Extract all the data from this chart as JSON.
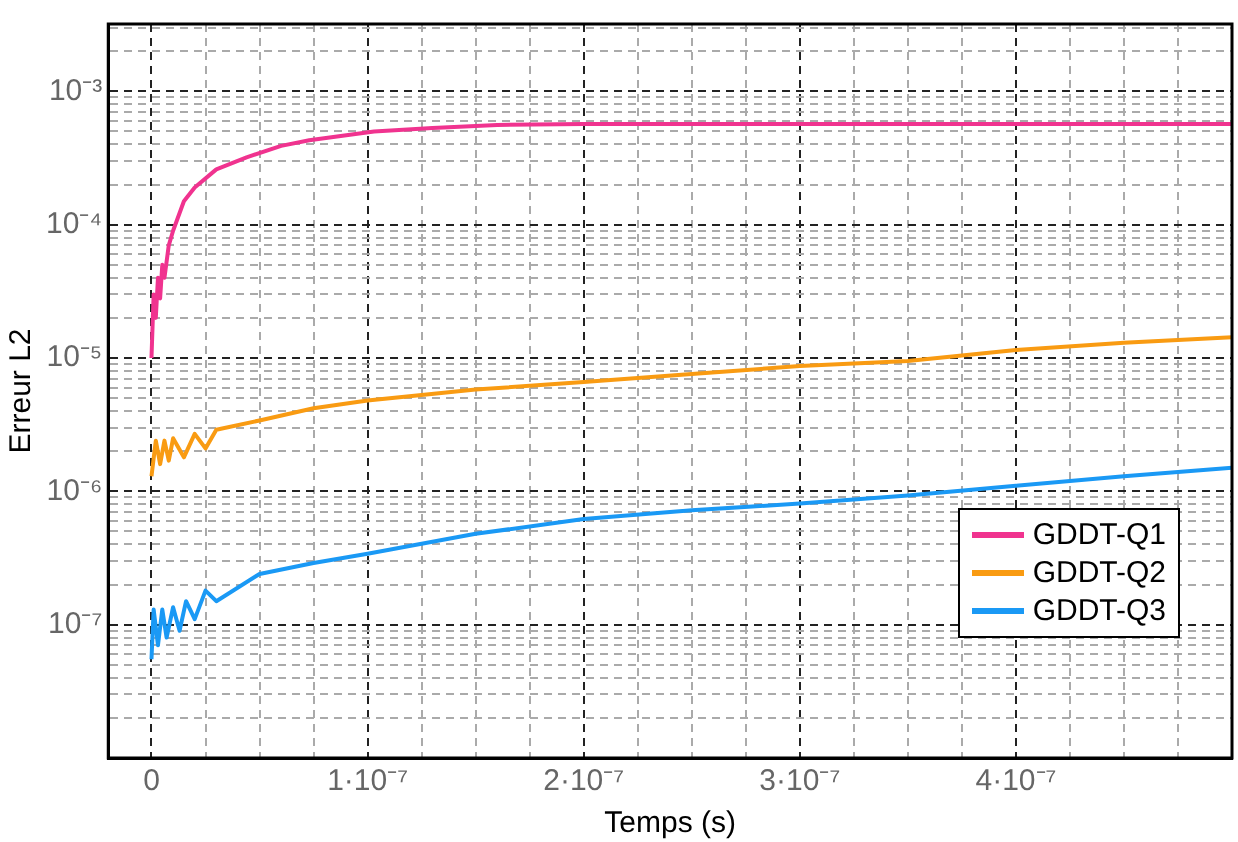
{
  "chart_data": {
    "type": "line",
    "xlabel": "Temps (s)",
    "ylabel": "Erreur L2",
    "log": "y",
    "grid": true,
    "legend": "bottom right",
    "line_style": "solid",
    "marker": "none",
    "xlim": [
      -2e-08,
      5e-07
    ],
    "xticks": [
      0,
      {
        "value": 2.5e-08,
        "label": null
      },
      {
        "value": 5e-08,
        "label": null
      },
      {
        "value": 7.5e-08,
        "label": null
      },
      {
        "value": 1e-07,
        "label": "1·10⁻⁷"
      },
      {
        "value": 1.25e-07,
        "label": null
      },
      {
        "value": 1.5e-07,
        "label": null
      },
      {
        "value": 1.75e-07,
        "label": null
      },
      {
        "value": 2e-07,
        "label": "2·10⁻⁷"
      },
      {
        "value": 2.25e-07,
        "label": null
      },
      {
        "value": 2.5e-07,
        "label": null
      },
      {
        "value": 2.75e-07,
        "label": null
      },
      {
        "value": 3e-07,
        "label": "3·10⁻⁷"
      },
      {
        "value": 3.25e-07,
        "label": null
      },
      {
        "value": 3.5e-07,
        "label": null
      },
      {
        "value": 3.75e-07,
        "label": null
      },
      {
        "value": 4e-07,
        "label": "4·10⁻⁷"
      },
      {
        "value": 4.25e-07,
        "label": null
      },
      {
        "value": 4.5e-07,
        "label": null
      },
      {
        "value": 4.75e-07,
        "label": null
      },
      {
        "value": 5e-07,
        "label": null
      }
    ],
    "ylim": [
      1e-08,
      0.0032
    ],
    "yticks": [
      {
        "value": 1e-08,
        "label": null
      },
      {
        "value": 2e-08,
        "label": null
      },
      {
        "value": 3e-08,
        "label": null
      },
      {
        "value": 4e-08,
        "label": null
      },
      {
        "value": 5e-08,
        "label": null
      },
      {
        "value": 6e-08,
        "label": null
      },
      {
        "value": 7e-08,
        "label": null
      },
      {
        "value": 8e-08,
        "label": null
      },
      {
        "value": 9e-08,
        "label": null
      },
      {
        "value": 1e-07,
        "label": "10⁻⁷"
      },
      {
        "value": 2e-07,
        "label": null
      },
      {
        "value": 3e-07,
        "label": null
      },
      {
        "value": 4e-07,
        "label": null
      },
      {
        "value": 5e-07,
        "label": null
      },
      {
        "value": 6e-07,
        "label": null
      },
      {
        "value": 7e-07,
        "label": null
      },
      {
        "value": 8e-07,
        "label": null
      },
      {
        "value": 9e-07,
        "label": null
      },
      {
        "value": 1e-06,
        "label": "10⁻⁶"
      },
      {
        "value": 2e-06,
        "label": null
      },
      {
        "value": 3e-06,
        "label": null
      },
      {
        "value": 4e-06,
        "label": null
      },
      {
        "value": 5e-06,
        "label": null
      },
      {
        "value": 6e-06,
        "label": null
      },
      {
        "value": 7e-06,
        "label": null
      },
      {
        "value": 8e-06,
        "label": null
      },
      {
        "value": 9e-06,
        "label": null
      },
      {
        "value": 1e-05,
        "label": "10⁻⁵"
      },
      {
        "value": 2e-05,
        "label": null
      },
      {
        "value": 3e-05,
        "label": null
      },
      {
        "value": 4e-05,
        "label": null
      },
      {
        "value": 5e-05,
        "label": null
      },
      {
        "value": 6e-05,
        "label": null
      },
      {
        "value": 7e-05,
        "label": null
      },
      {
        "value": 8e-05,
        "label": null
      },
      {
        "value": 9e-05,
        "label": null
      },
      {
        "value": 0.0001,
        "label": "10⁻⁴"
      },
      {
        "value": 0.0002,
        "label": null
      },
      {
        "value": 0.0003,
        "label": null
      },
      {
        "value": 0.0004,
        "label": null
      },
      {
        "value": 0.0005,
        "label": null
      },
      {
        "value": 0.0006,
        "label": null
      },
      {
        "value": 0.0007,
        "label": null
      },
      {
        "value": 0.0008,
        "label": null
      },
      {
        "value": 0.0009,
        "label": null
      },
      {
        "value": 0.001,
        "label": "10⁻³"
      },
      {
        "value": 0.002,
        "label": null
      },
      {
        "value": 0.003,
        "label": null
      }
    ],
    "series": [
      {
        "name": "GDDT-Q1",
        "color": "#f0338f",
        "x": [
          0,
          1e-09,
          2e-09,
          3e-09,
          4e-09,
          5e-09,
          6e-09,
          8e-09,
          1e-08,
          1.5e-08,
          2e-08,
          3e-08,
          4.4e-08,
          6e-08,
          7.3e-08,
          1.03e-07,
          1.3e-07,
          1.6e-07,
          2e-07,
          2.5e-07,
          3e-07,
          4e-07,
          5e-07
        ],
        "values": [
          1e-05,
          3e-05,
          2e-05,
          4e-05,
          2.8e-05,
          5e-05,
          4e-05,
          7e-05,
          9e-05,
          0.00015,
          0.00019,
          0.00026,
          0.00032,
          0.00039,
          0.00043,
          0.0005,
          0.00053,
          0.00056,
          0.00057,
          0.00057,
          0.00057,
          0.00057,
          0.00057
        ]
      },
      {
        "name": "GDDT-Q2",
        "color": "#f99b12",
        "x": [
          0,
          2e-09,
          4e-09,
          6e-09,
          8e-09,
          1e-08,
          1.5e-08,
          2e-08,
          2.5e-08,
          3e-08,
          5e-08,
          7.5e-08,
          1e-07,
          1.5e-07,
          2e-07,
          2.5e-07,
          3e-07,
          3.5e-07,
          4e-07,
          4.5e-07,
          5e-07
        ],
        "values": [
          1.3e-06,
          2.4e-06,
          1.6e-06,
          2.4e-06,
          1.7e-06,
          2.5e-06,
          1.8e-06,
          2.7e-06,
          2.1e-06,
          2.9e-06,
          3.4e-06,
          4.2e-06,
          4.8e-06,
          5.8e-06,
          6.6e-06,
          7.6e-06,
          8.7e-06,
          9.5e-06,
          1.15e-05,
          1.3e-05,
          1.43e-05
        ]
      },
      {
        "name": "GDDT-Q3",
        "color": "#1a99f5",
        "x": [
          0,
          1e-09,
          3e-09,
          5e-09,
          7e-09,
          1e-08,
          1.3e-08,
          1.6e-08,
          2e-08,
          2.5e-08,
          3e-08,
          5e-08,
          7.5e-08,
          1e-07,
          1.5e-07,
          2e-07,
          2.5e-07,
          3e-07,
          3.5e-07,
          4e-07,
          4.5e-07,
          5e-07
        ],
        "values": [
          5.5e-08,
          1.3e-07,
          7e-08,
          1.3e-07,
          8e-08,
          1.35e-07,
          9e-08,
          1.5e-07,
          1.1e-07,
          1.8e-07,
          1.5e-07,
          2.4e-07,
          2.9e-07,
          3.4e-07,
          4.8e-07,
          6.2e-07,
          7.2e-07,
          8.1e-07,
          9.3e-07,
          1.1e-06,
          1.3e-06,
          1.5e-06
        ]
      }
    ]
  }
}
